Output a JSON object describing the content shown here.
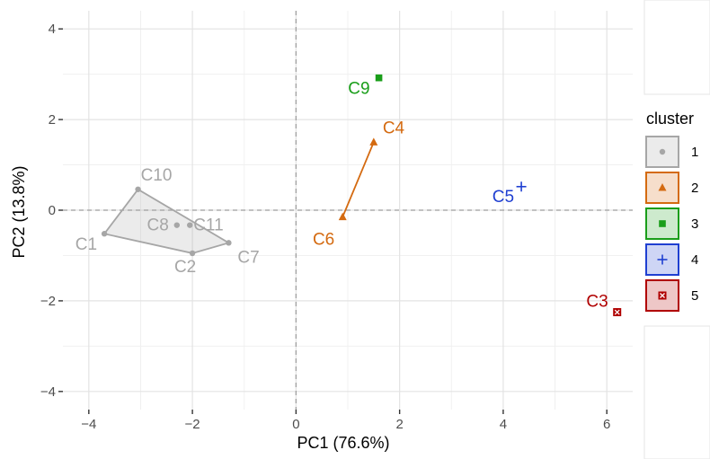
{
  "chart_data": {
    "type": "scatter",
    "xlabel": "PC1 (76.6%)",
    "ylabel": "PC2 (13.8%)",
    "xlim": [
      -4.5,
      6.5
    ],
    "ylim": [
      -4.4,
      4.4
    ],
    "x_ticks": [
      -4,
      -2,
      0,
      2,
      4,
      6
    ],
    "y_ticks": [
      -4,
      -2,
      0,
      2,
      4
    ],
    "x_tick_labels": [
      "−4",
      "−2",
      "0",
      "2",
      "4",
      "6"
    ],
    "y_tick_labels": [
      "−4",
      "−2",
      "0",
      "2",
      "4"
    ],
    "grid": true,
    "reference_lines": {
      "x": 0,
      "y": 0,
      "style": "dashed"
    },
    "legend": {
      "title": "cluster",
      "position": "right"
    },
    "clusters": [
      {
        "id": "1",
        "color": "#a6a6a6",
        "shape": "circle",
        "points": [
          {
            "label": "C1",
            "x": -3.7,
            "y": -0.52
          },
          {
            "label": "C10",
            "x": -3.05,
            "y": 0.46
          },
          {
            "label": "C8",
            "x": -2.3,
            "y": -0.33
          },
          {
            "label": "C11",
            "x": -2.05,
            "y": -0.33
          },
          {
            "label": "C2",
            "x": -2.0,
            "y": -0.95
          },
          {
            "label": "C7",
            "x": -1.3,
            "y": -0.72
          }
        ]
      },
      {
        "id": "2",
        "color": "#d46a10",
        "shape": "triangle",
        "points": [
          {
            "label": "C4",
            "x": 1.5,
            "y": 1.5
          },
          {
            "label": "C6",
            "x": 0.9,
            "y": -0.15
          }
        ]
      },
      {
        "id": "3",
        "color": "#1a9e1a",
        "shape": "square",
        "points": [
          {
            "label": "C9",
            "x": 1.6,
            "y": 2.92
          }
        ]
      },
      {
        "id": "4",
        "color": "#1f3fd1",
        "shape": "plus",
        "points": [
          {
            "label": "C5",
            "x": 4.35,
            "y": 0.52
          }
        ]
      },
      {
        "id": "5",
        "color": "#b00000",
        "shape": "boxed-cross",
        "points": [
          {
            "label": "C3",
            "x": 6.2,
            "y": -2.25
          }
        ]
      }
    ]
  }
}
